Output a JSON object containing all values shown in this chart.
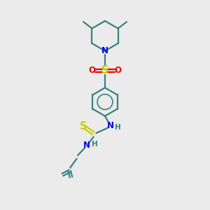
{
  "bg_color": "#ebebeb",
  "bond_color": "#3a8080",
  "N_color": "#0000ee",
  "S_color": "#cccc00",
  "O_color": "#ee0000",
  "H_color": "#3a8080",
  "line_width": 1.6,
  "font_size": 8.5,
  "fig_w": 3.0,
  "fig_h": 3.0,
  "dpi": 100,
  "xlim": [
    0,
    10
  ],
  "ylim": [
    0,
    10
  ]
}
